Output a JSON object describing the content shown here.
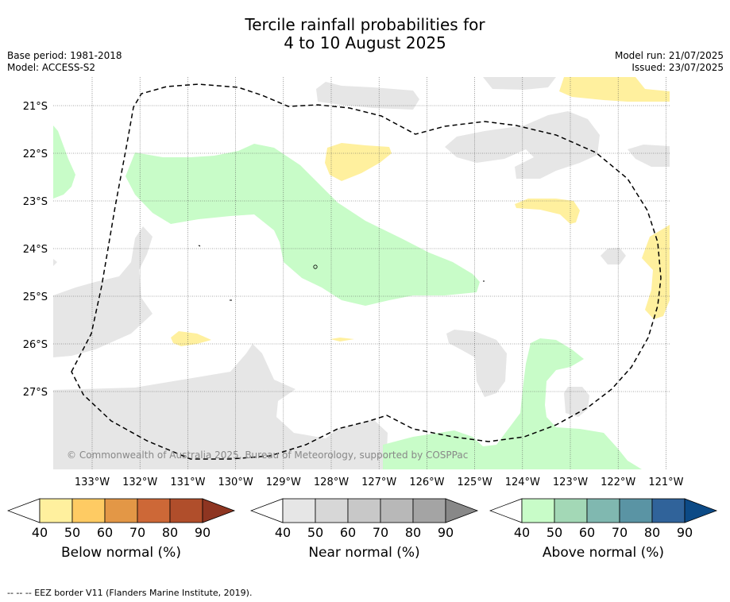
{
  "title_line1": "Tercile rainfall probabilities for",
  "title_line2": "4 to 10 August 2025",
  "base_period": "Base period: 1981-2018",
  "model": "Model: ACCESS-S2",
  "model_run": "Model run: 21/07/2025",
  "issued": "Issued: 23/07/2025",
  "copyright": "© Commonwealth of Australia 2025, Bureau of Meteorology, supported by COSPPac",
  "lat_labels": [
    "21°S",
    "22°S",
    "23°S",
    "24°S",
    "25°S",
    "26°S",
    "27°S"
  ],
  "lon_labels": [
    "133°W",
    "132°W",
    "131°W",
    "130°W",
    "129°W",
    "128°W",
    "127°W",
    "126°W",
    "125°W",
    "124°W",
    "123°W",
    "122°W",
    "121°W"
  ],
  "colorbars": [
    {
      "title": "Below normal (%)",
      "ticks": [
        "40",
        "50",
        "60",
        "70",
        "80",
        "90"
      ],
      "colors": [
        "#fff09e",
        "#fecb63",
        "#e39746",
        "#cd6837",
        "#b04e2b",
        "#8e3521"
      ]
    },
    {
      "title": "Near normal (%)",
      "ticks": [
        "40",
        "50",
        "60",
        "70",
        "80",
        "90"
      ],
      "colors": [
        "#e6e6e6",
        "#d7d7d7",
        "#c8c8c8",
        "#b8b8b8",
        "#a4a4a4",
        "#888888"
      ]
    },
    {
      "title": "Above normal (%)",
      "ticks": [
        "40",
        "50",
        "60",
        "70",
        "80",
        "90"
      ],
      "colors": [
        "#c8fcc8",
        "#a3d8b6",
        "#80b8b0",
        "#5a94a4",
        "#30639a",
        "#0c4a86"
      ]
    }
  ],
  "footer": "--  --  -- EEZ border V11 (Flanders Marine Institute, 2019).",
  "legend_colors": {
    "near": "#e6e6e6",
    "below": "#fff09e",
    "above": "#c8fcc8"
  }
}
